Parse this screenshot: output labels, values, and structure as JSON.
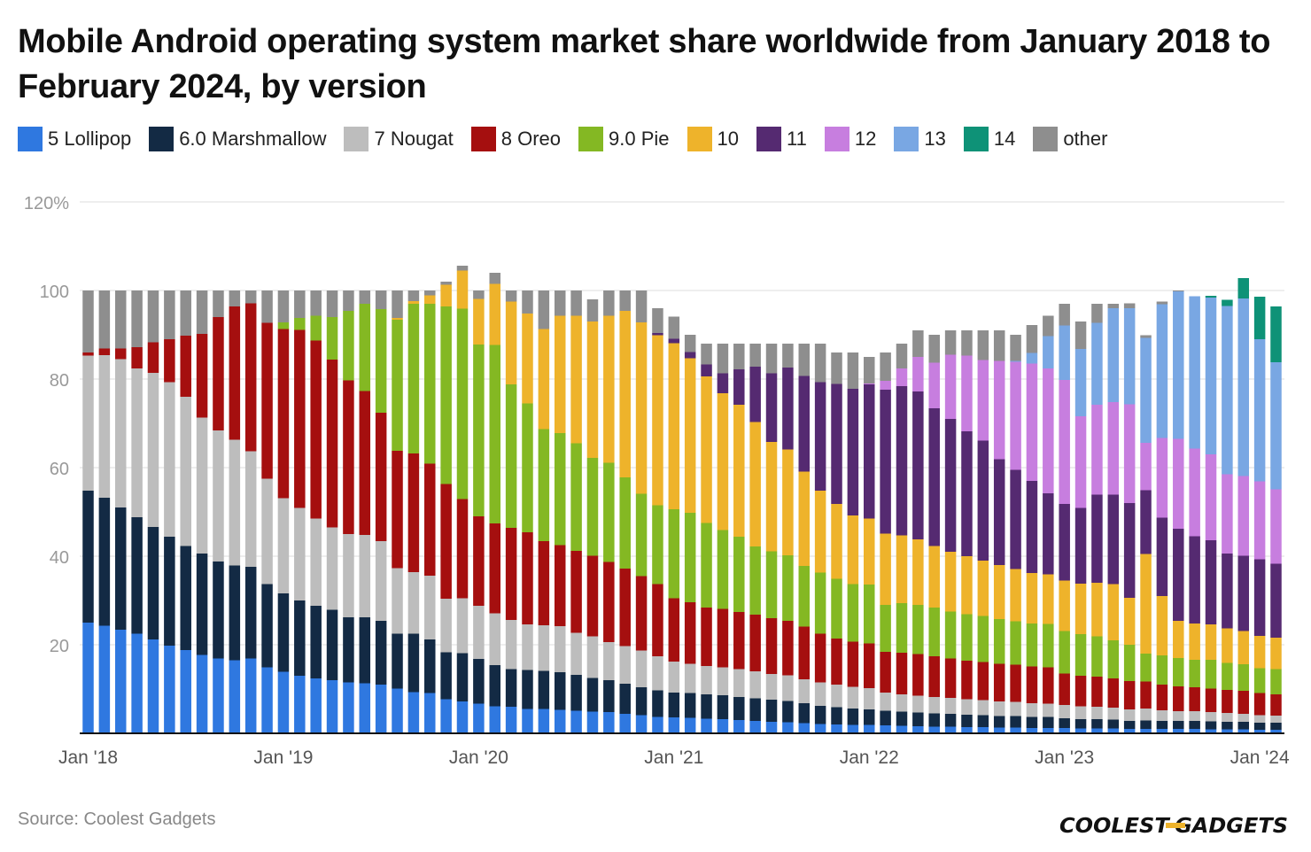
{
  "title": "Mobile Android operating system market share worldwide from January 2018 to February 2024, by version",
  "source": "Source: Coolest Gadgets",
  "logo": {
    "text": "COOLEST-GADGETS",
    "icon": "coolest-gadgets-logo"
  },
  "chart_data": {
    "type": "bar",
    "stacked": true,
    "title": "Mobile Android operating system market share worldwide from January 2018 to February 2024, by version",
    "xlabel": "",
    "ylabel": "",
    "ylim": [
      0,
      120
    ],
    "yticks": [
      20,
      40,
      60,
      80,
      100,
      120
    ],
    "ytick_labels": [
      "20",
      "40",
      "60",
      "80",
      "100",
      "120%"
    ],
    "grid": true,
    "legend_position": "top-left",
    "x_tick_labels": [
      {
        "index": 0,
        "label": "Jan '18"
      },
      {
        "index": 12,
        "label": "Jan '19"
      },
      {
        "index": 24,
        "label": "Jan '20"
      },
      {
        "index": 36,
        "label": "Jan '21"
      },
      {
        "index": 48,
        "label": "Jan '22"
      },
      {
        "index": 60,
        "label": "Jan '23"
      },
      {
        "index": 72,
        "label": "Jan '24"
      }
    ],
    "categories": [
      "2018-01",
      "2018-02",
      "2018-03",
      "2018-04",
      "2018-05",
      "2018-06",
      "2018-07",
      "2018-08",
      "2018-09",
      "2018-10",
      "2018-11",
      "2018-12",
      "2019-01",
      "2019-02",
      "2019-03",
      "2019-04",
      "2019-05",
      "2019-06",
      "2019-07",
      "2019-08",
      "2019-09",
      "2019-10",
      "2019-11",
      "2019-12",
      "2020-01",
      "2020-02",
      "2020-03",
      "2020-04",
      "2020-05",
      "2020-06",
      "2020-07",
      "2020-08",
      "2020-09",
      "2020-10",
      "2020-11",
      "2020-12",
      "2021-01",
      "2021-02",
      "2021-03",
      "2021-04",
      "2021-05",
      "2021-06",
      "2021-07",
      "2021-08",
      "2021-09",
      "2021-10",
      "2021-11",
      "2021-12",
      "2022-01",
      "2022-02",
      "2022-03",
      "2022-04",
      "2022-05",
      "2022-06",
      "2022-07",
      "2022-08",
      "2022-09",
      "2022-10",
      "2022-11",
      "2022-12",
      "2023-01",
      "2023-02",
      "2023-03",
      "2023-04",
      "2023-05",
      "2023-06",
      "2023-07",
      "2023-08",
      "2023-09",
      "2023-10",
      "2023-11",
      "2023-12",
      "2024-01",
      "2024-02"
    ],
    "series": [
      {
        "name": "5 Lollipop",
        "color": "#2f78e0",
        "values": [
          25,
          24.3,
          23.4,
          22.5,
          21.2,
          19.8,
          18.8,
          17.7,
          16.9,
          16.5,
          16.9,
          14.9,
          13.9,
          13,
          12.4,
          12,
          11.5,
          11.3,
          11,
          10.1,
          9.3,
          9.1,
          7.7,
          7.2,
          6.7,
          6.1,
          6,
          5.5,
          5.5,
          5.3,
          5.1,
          4.9,
          4.8,
          4.4,
          4.1,
          3.7,
          3.6,
          3.5,
          3.3,
          3.2,
          3,
          2.8,
          2.6,
          2.5,
          2.3,
          2.1,
          2,
          1.9,
          1.9,
          1.8,
          1.7,
          1.6,
          1.5,
          1.5,
          1.4,
          1.4,
          1.3,
          1.3,
          1.2,
          1.2,
          1.2,
          1.1,
          1.1,
          1.1,
          1,
          1,
          1,
          1,
          1,
          0.9,
          0.9,
          0.9,
          0.8,
          0.8
        ]
      },
      {
        "name": "6.0 Marshmallow",
        "color": "#132a44",
        "values": [
          29.8,
          28.9,
          27.6,
          26.3,
          25.4,
          24.6,
          23.5,
          22.9,
          21.9,
          21.4,
          20.7,
          18.8,
          17.7,
          17,
          16.4,
          15.9,
          14.7,
          14.9,
          14.4,
          12.4,
          13.2,
          12.1,
          10.6,
          10.9,
          10.1,
          9.3,
          8.5,
          8.8,
          8.6,
          8.5,
          8.1,
          7.6,
          7.2,
          6.8,
          6.3,
          6,
          5.6,
          5.6,
          5.5,
          5.4,
          5.2,
          5.1,
          5,
          4.8,
          4.5,
          4.1,
          3.9,
          3.7,
          3.5,
          3.3,
          3.2,
          3.1,
          3,
          2.9,
          2.8,
          2.7,
          2.6,
          2.6,
          2.5,
          2.5,
          2.2,
          2.1,
          2.1,
          2,
          1.8,
          1.9,
          1.8,
          1.8,
          1.8,
          1.8,
          1.7,
          1.7,
          1.6,
          1.6
        ]
      },
      {
        "name": "7 Nougat",
        "color": "#bdbdbd",
        "values": [
          30.5,
          32.2,
          33.5,
          33.6,
          34.8,
          34.9,
          33.7,
          30.7,
          29.6,
          28.4,
          26.1,
          23.8,
          21.5,
          20.9,
          19.7,
          18.6,
          18.8,
          18.6,
          18,
          14.8,
          13.9,
          14.4,
          12.1,
          12.4,
          12,
          11.7,
          11.1,
          10.3,
          10.3,
          10.4,
          9.5,
          9.4,
          8.6,
          8.5,
          8.3,
          7.7,
          7,
          6.6,
          6.4,
          6.3,
          6.3,
          6.1,
          5.8,
          5.8,
          5.4,
          5.3,
          5.1,
          4.9,
          4.8,
          4.1,
          3.9,
          3.8,
          3.7,
          3.6,
          3.5,
          3.4,
          3.3,
          3.2,
          3.1,
          3,
          3,
          2.9,
          2.8,
          2.7,
          2.6,
          2.7,
          2.4,
          2.2,
          2.2,
          2.1,
          2,
          1.8,
          1.7,
          1.6
        ]
      },
      {
        "name": "8 Oreo",
        "color": "#a50f0f",
        "values": [
          0.7,
          1.5,
          2.4,
          4.8,
          6.9,
          9.7,
          13.8,
          18.9,
          25.6,
          30.1,
          33.4,
          35.2,
          38.2,
          40.2,
          40.2,
          37.9,
          34.7,
          32.5,
          29,
          26.5,
          26.8,
          25.3,
          25.9,
          22.4,
          20.2,
          20.3,
          20.8,
          20.8,
          19,
          18.3,
          18.5,
          18.2,
          18.1,
          17.5,
          16.8,
          16.3,
          14.3,
          13.9,
          13.2,
          13.2,
          12.9,
          12.8,
          12.6,
          12.3,
          11.9,
          11,
          10.4,
          10.2,
          10.1,
          9.2,
          9.4,
          9.4,
          9.2,
          8.9,
          8.7,
          8.6,
          8.5,
          8.4,
          8.3,
          8.2,
          7.1,
          6.9,
          6.8,
          6.6,
          6.4,
          6.1,
          5.8,
          5.6,
          5.4,
          5.3,
          5.2,
          5.2,
          5,
          4.8
        ]
      },
      {
        "name": "9.0 Pie",
        "color": "#84b823",
        "values": [
          0,
          0,
          0,
          0,
          0,
          0,
          0,
          0,
          0,
          0,
          0,
          0,
          1.5,
          2.7,
          5.6,
          9.6,
          15.7,
          19.7,
          23.4,
          29.6,
          33.8,
          36.1,
          40.1,
          43,
          38.8,
          40.3,
          32.4,
          29.1,
          25.3,
          25.3,
          24.3,
          22.1,
          22.4,
          20.6,
          18.6,
          17.8,
          20.1,
          20.2,
          19.1,
          17.8,
          17,
          15.4,
          15.1,
          14.8,
          13.7,
          13.8,
          13.5,
          13,
          13.3,
          10.6,
          11.2,
          11.1,
          11,
          10.6,
          10.5,
          10.4,
          10.1,
          9.8,
          9.7,
          9.8,
          9.6,
          9.4,
          9.1,
          8.6,
          8.2,
          6.3,
          6.6,
          6.4,
          6.2,
          6.5,
          6.1,
          6,
          5.6,
          5.7
        ]
      },
      {
        "name": "10",
        "color": "#eeb32b",
        "values": [
          0,
          0,
          0,
          0,
          0,
          0,
          0,
          0,
          0,
          0,
          0,
          0,
          0,
          0,
          0,
          0,
          0,
          0,
          0,
          0.4,
          0.6,
          1.9,
          4.9,
          8.6,
          10.3,
          13.8,
          18.7,
          20.3,
          22.6,
          26.5,
          28.8,
          30.8,
          33.2,
          37.6,
          38.7,
          38.4,
          37.5,
          34.9,
          33.1,
          30.9,
          29.8,
          28.1,
          24.7,
          23.9,
          21.3,
          18.5,
          16.9,
          15.5,
          14.9,
          16.1,
          15.3,
          14.8,
          13.9,
          13.5,
          13.1,
          12.5,
          12.2,
          11.8,
          11.4,
          11.2,
          11.4,
          11.4,
          12.1,
          12.7,
          10.6,
          22.5,
          13.4,
          8.4,
          8.2,
          8,
          7.8,
          7.5,
          7.3,
          7.1
        ]
      },
      {
        "name": "11",
        "color": "#552a71",
        "values": [
          0,
          0,
          0,
          0,
          0,
          0,
          0,
          0,
          0,
          0,
          0,
          0,
          0,
          0,
          0,
          0,
          0,
          0,
          0,
          0,
          0,
          0,
          0,
          0,
          0,
          0,
          0,
          0,
          0,
          0,
          0,
          0,
          0,
          0,
          0,
          0.5,
          1,
          1.4,
          2.7,
          4.5,
          8,
          12.5,
          15.5,
          18.5,
          21.6,
          24.5,
          27.1,
          28.6,
          30.3,
          32.5,
          33.7,
          33.4,
          31.1,
          30,
          28.2,
          27.1,
          23.9,
          22.4,
          20.8,
          18.3,
          17.3,
          17.1,
          19.9,
          20.2,
          21.4,
          14.4,
          17.7,
          20.8,
          19.7,
          19,
          16.9,
          17,
          17.3,
          16.7
        ]
      },
      {
        "name": "12",
        "color": "#c77edf",
        "values": [
          0,
          0,
          0,
          0,
          0,
          0,
          0,
          0,
          0,
          0,
          0,
          0,
          0,
          0,
          0,
          0,
          0,
          0,
          0,
          0,
          0,
          0,
          0,
          0,
          0,
          0,
          0,
          0,
          0,
          0,
          0,
          0,
          0,
          0,
          0,
          0,
          0,
          0,
          0,
          0,
          0,
          0,
          0,
          0,
          0,
          0,
          0,
          0,
          0.2,
          2,
          4,
          7.8,
          10.3,
          14.5,
          17.1,
          18.2,
          22.2,
          24.4,
          26.5,
          28.2,
          28,
          20.7,
          20.3,
          20.9,
          22.3,
          10.7,
          18,
          20.3,
          19.8,
          19.4,
          17.9,
          18,
          17.6,
          16.8
        ]
      },
      {
        "name": "13",
        "color": "#79a7e3",
        "values": [
          0,
          0,
          0,
          0,
          0,
          0,
          0,
          0,
          0,
          0,
          0,
          0,
          0,
          0,
          0,
          0,
          0,
          0,
          0,
          0,
          0,
          0,
          0,
          0,
          0,
          0,
          0,
          0,
          0,
          0,
          0,
          0,
          0,
          0,
          0,
          0,
          0,
          0,
          0,
          0,
          0,
          0,
          0,
          0,
          0,
          0,
          0,
          0,
          0,
          0,
          0,
          0,
          0,
          0,
          0,
          0,
          0,
          0.2,
          2.4,
          7.3,
          12.3,
          15.2,
          18.5,
          21.2,
          21.7,
          23.7,
          30.2,
          33.3,
          34.4,
          35.4,
          38,
          40.1,
          32.1,
          28.7
        ]
      },
      {
        "name": "14",
        "color": "#0e9277",
        "values": [
          0,
          0,
          0,
          0,
          0,
          0,
          0,
          0,
          0,
          0,
          0,
          0,
          0,
          0,
          0,
          0,
          0,
          0,
          0,
          0,
          0,
          0,
          0,
          0,
          0,
          0,
          0,
          0,
          0,
          0,
          0,
          0,
          0,
          0,
          0,
          0,
          0,
          0,
          0,
          0,
          0,
          0,
          0,
          0,
          0,
          0,
          0,
          0,
          0,
          0,
          0,
          0,
          0,
          0,
          0,
          0,
          0,
          0,
          0,
          0,
          0,
          0,
          0,
          0,
          0,
          0,
          0,
          0,
          0,
          0.4,
          1.4,
          4.6,
          9.6,
          12.6
        ]
      },
      {
        "name": "other",
        "color": "#8e8e8e",
        "values": [
          14,
          13.1,
          13.1,
          12.8,
          11.7,
          11,
          10.2,
          9.8,
          6,
          3.6,
          2.9,
          7.3,
          7.2,
          6.2,
          5.7,
          6,
          4.6,
          3,
          4.2,
          6.2,
          2.4,
          1.1,
          0.7,
          1.1,
          1.9,
          2.5,
          2.5,
          5.2,
          8.7,
          5.7,
          5.7,
          5,
          5.7,
          4.6,
          7.2,
          5.6,
          5,
          3.9,
          4.7,
          6.7,
          5.8,
          5.2,
          6.7,
          5.4,
          7.3,
          8.7,
          7.1,
          8.2,
          6,
          6.4,
          5.6,
          6,
          6.3,
          5.5,
          5.7,
          6.7,
          6.9,
          5.9,
          6.3,
          4.6,
          4.9,
          6.2,
          4.3,
          1,
          1.1,
          0.6,
          0.6,
          0.2,
          0,
          0,
          0,
          0,
          0,
          0
        ]
      }
    ]
  }
}
